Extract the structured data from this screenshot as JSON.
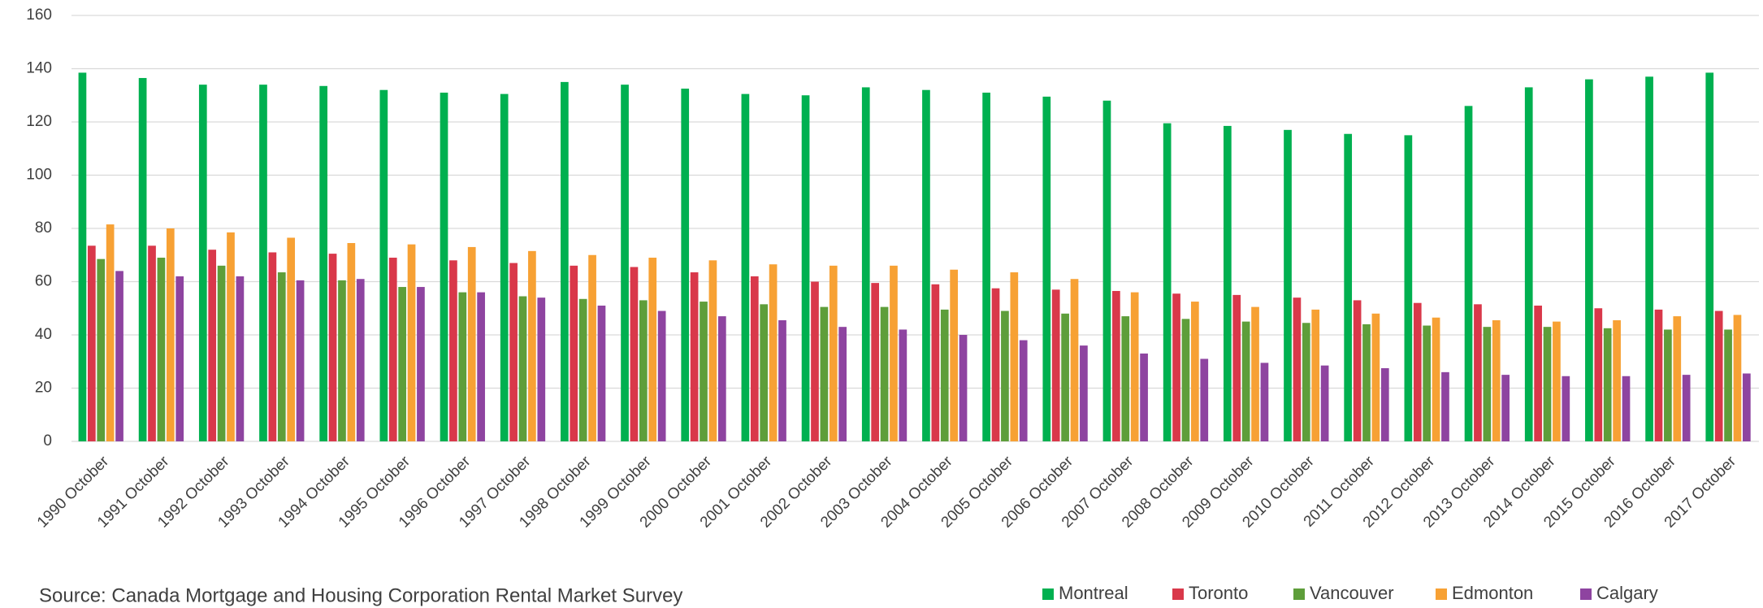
{
  "chart_data": {
    "type": "bar",
    "source": "Source: Canada Mortgage and  Housing Corporation Rental Market Survey",
    "categories": [
      "1990 October",
      "1991 October",
      "1992 October",
      "1993 October",
      "1994 October",
      "1995 October",
      "1996 October",
      "1997 October",
      "1998 October",
      "1999 October",
      "2000 October",
      "2001 October",
      "2002 October",
      "2003 October",
      "2004 October",
      "2005 October",
      "2006 October",
      "2007 October",
      "2008 October",
      "2009 October",
      "2010 October",
      "2011 October",
      "2012 October",
      "2013 October",
      "2014 October",
      "2015 October",
      "2016 October",
      "2017 October"
    ],
    "series": [
      {
        "name": "Montreal",
        "color": "#00b050",
        "values": [
          138.5,
          136.5,
          134,
          134,
          133.5,
          132,
          131,
          130.5,
          135,
          134,
          132.5,
          130.5,
          130,
          133,
          132,
          131,
          129.5,
          128,
          119.5,
          118.5,
          117,
          115.5,
          115,
          126,
          133,
          136,
          137,
          138.5
        ]
      },
      {
        "name": "Toronto",
        "color": "#d9384a",
        "values": [
          73.5,
          73.5,
          72,
          71,
          70.5,
          69,
          68,
          67,
          66,
          65.5,
          63.5,
          62,
          60,
          59.5,
          59,
          57.5,
          57,
          56.5,
          55.5,
          55,
          54,
          53,
          52,
          51.5,
          51,
          50,
          49.5,
          49
        ]
      },
      {
        "name": "Vancouver",
        "color": "#5e9e3a",
        "values": [
          68.5,
          69,
          66,
          63.5,
          60.5,
          58,
          56,
          54.5,
          53.5,
          53,
          52.5,
          51.5,
          50.5,
          50.5,
          49.5,
          49,
          48,
          47,
          46,
          45,
          44.5,
          44,
          43.5,
          43,
          43,
          42.5,
          42,
          42
        ]
      },
      {
        "name": "Edmonton",
        "color": "#f7a134",
        "values": [
          81.5,
          80,
          78.5,
          76.5,
          74.5,
          74,
          73,
          71.5,
          70,
          69,
          68,
          66.5,
          66,
          66,
          64.5,
          63.5,
          61,
          56,
          52.5,
          50.5,
          49.5,
          48,
          46.5,
          45.5,
          45,
          45.5,
          47,
          47.5
        ]
      },
      {
        "name": "Calgary",
        "color": "#8e44a0",
        "values": [
          64,
          62,
          62,
          60.5,
          61,
          58,
          56,
          54,
          51,
          49,
          47,
          45.5,
          43,
          42,
          40,
          38,
          36,
          33,
          31,
          29.5,
          28.5,
          27.5,
          26,
          25,
          24.5,
          24.5,
          25,
          25.5
        ]
      }
    ],
    "ylim": [
      0,
      160
    ],
    "yticks": [
      0,
      20,
      40,
      60,
      80,
      100,
      120,
      140,
      160
    ],
    "grid": true
  }
}
